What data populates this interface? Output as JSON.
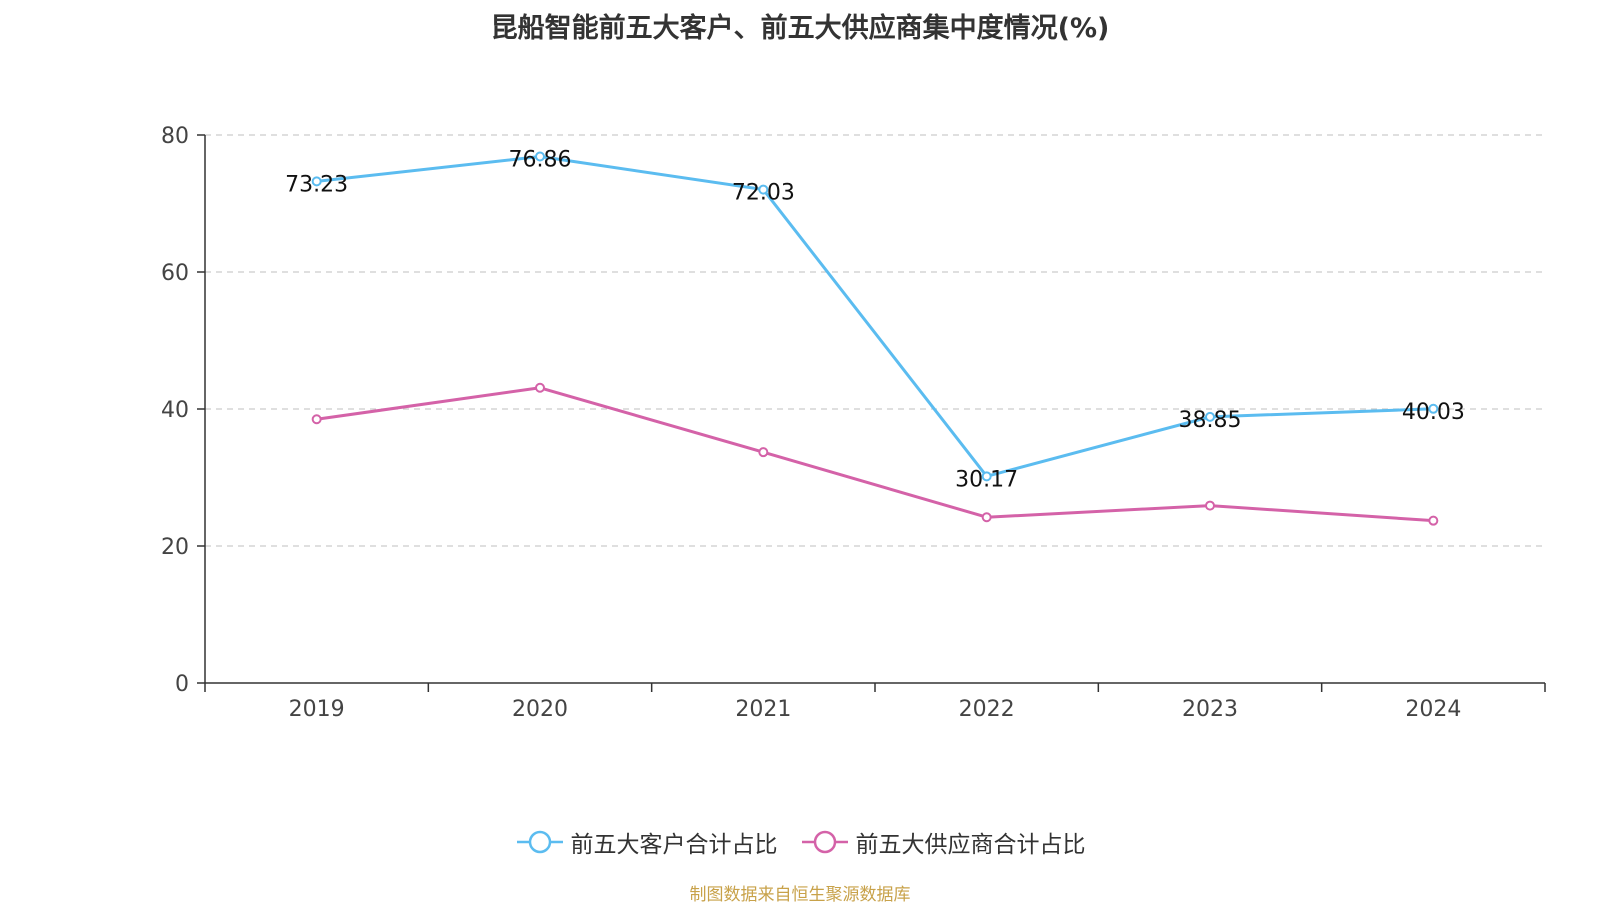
{
  "chart_data": {
    "type": "line",
    "title": "昆船智能前五大客户、前五大供应商集中度情况(%)",
    "categories": [
      "2019",
      "2020",
      "2021",
      "2022",
      "2023",
      "2024"
    ],
    "ylim": [
      0,
      80
    ],
    "yticks": [
      0,
      20,
      40,
      60,
      80
    ],
    "grid": true,
    "legend_position": "bottom",
    "series": [
      {
        "name": "前五大客户合计占比",
        "color": "#5bbcf0",
        "values": [
          73.23,
          76.86,
          72.03,
          30.17,
          38.85,
          40.03
        ],
        "labels": [
          "73.23",
          "76.86",
          "72.03",
          "30.17",
          "38.85",
          "40.03"
        ]
      },
      {
        "name": "前五大供应商合计占比",
        "color": "#d462a8",
        "values": [
          38.5,
          43.1,
          33.7,
          24.2,
          25.9,
          23.7
        ]
      }
    ]
  },
  "source": "制图数据来自恒生聚源数据库"
}
